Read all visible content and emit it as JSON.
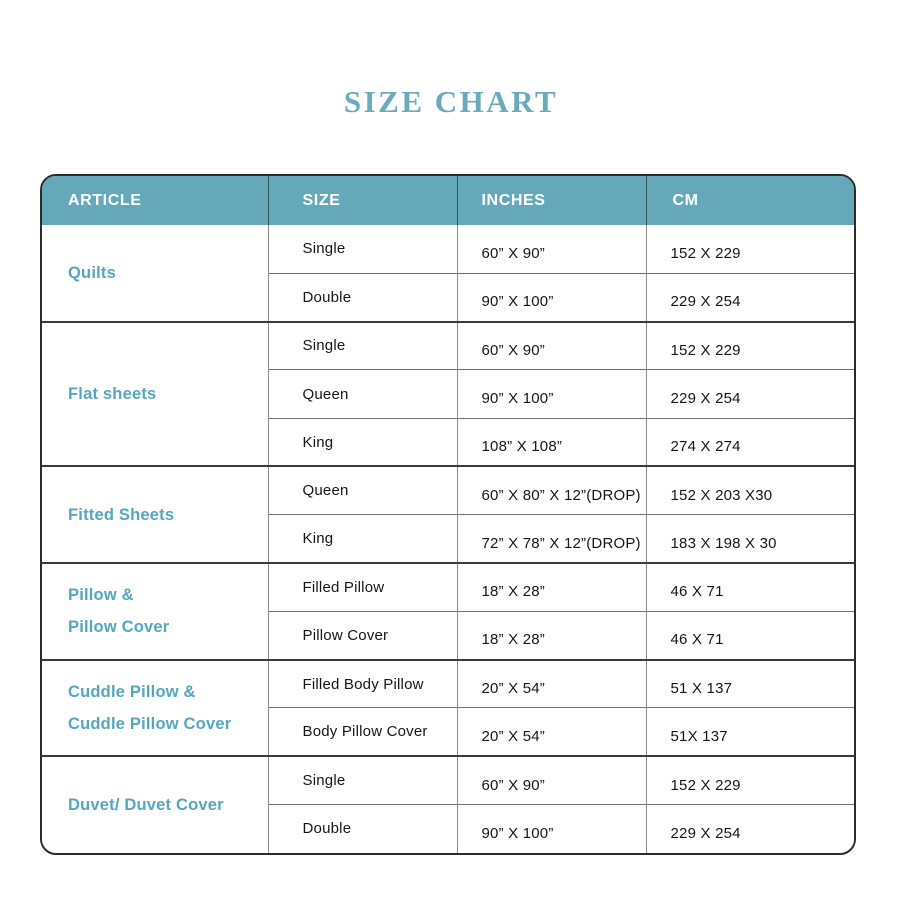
{
  "title": "SIZE CHART",
  "colors": {
    "header_teal": "#64A8B9",
    "article_teal": "#55A6C0",
    "title_teal": "#69AABC",
    "border_dark": "#2b2b2b",
    "section_divider": "#3a3a3a",
    "row_divider": "#6f6f6f",
    "grid_gray": "#8c8c8c",
    "header_divider": "#33555c",
    "body_text": "#161616"
  },
  "table": {
    "headers": [
      "ARTICLE",
      "SIZE",
      "INCHES",
      "CM"
    ],
    "sections": [
      {
        "article_lines": [
          "Quilts"
        ],
        "rows": [
          {
            "size": "Single",
            "inches": "60” X 90”",
            "cm": "152 X 229"
          },
          {
            "size": "Double",
            "inches": "90” X 100”",
            "cm": "229 X 254"
          }
        ]
      },
      {
        "article_lines": [
          "Flat sheets"
        ],
        "rows": [
          {
            "size": "Single",
            "inches": "60” X 90”",
            "cm": "152 X 229"
          },
          {
            "size": "Queen",
            "inches": "90” X 100”",
            "cm": "229 X 254"
          },
          {
            "size": "King",
            "inches": "108” X 108”",
            "cm": "274 X 274"
          }
        ]
      },
      {
        "article_lines": [
          "Fitted Sheets"
        ],
        "rows": [
          {
            "size": "Queen",
            "inches": "60” X 80” X 12”(DROP)",
            "cm": "152 X 203 X30"
          },
          {
            "size": "King",
            "inches": "72” X 78” X 12”(DROP)",
            "cm": "183 X 198 X 30"
          }
        ]
      },
      {
        "article_lines": [
          "Pillow &",
          "Pillow Cover"
        ],
        "rows": [
          {
            "size": "Filled Pillow",
            "inches": "18” X 28”",
            "cm": "46 X 71"
          },
          {
            "size": "Pillow Cover",
            "inches": "18” X 28”",
            "cm": "46 X 71"
          }
        ]
      },
      {
        "article_lines": [
          "Cuddle Pillow &",
          "Cuddle Pillow Cover"
        ],
        "rows": [
          {
            "size": "Filled Body Pillow",
            "inches": "20” X 54”",
            "cm": "51 X 137"
          },
          {
            "size": "Body Pillow Cover",
            "inches": "20” X 54”",
            "cm": "51X 137"
          }
        ]
      },
      {
        "article_lines": [
          "Duvet/ Duvet Cover"
        ],
        "rows": [
          {
            "size": "Single",
            "inches": "60” X 90”",
            "cm": "152 X 229"
          },
          {
            "size": "Double",
            "inches": "90” X 100”",
            "cm": "229 X 254"
          }
        ]
      }
    ]
  }
}
